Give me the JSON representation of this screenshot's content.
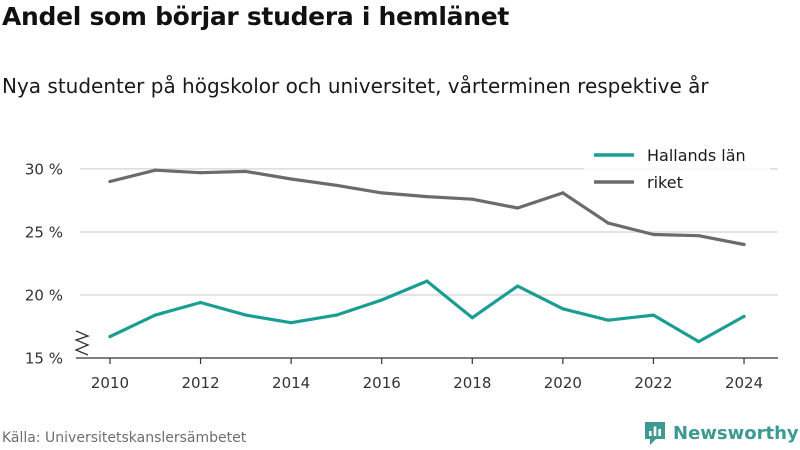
{
  "title": "Andel som börjar studera i hemlänet",
  "subtitle": "Nya studenter på högskolor och universitet, vårterminen respektive år",
  "source": "Källa: Universitetskanslersämbetet",
  "logo_text": "Newsworthy",
  "colors": {
    "series_1": "#1a9e93",
    "series_2": "#6b6a70",
    "logo": "#3d9a90",
    "grid": "#dcdcdc"
  },
  "chart_data": {
    "type": "line",
    "x": [
      2010,
      2011,
      2012,
      2013,
      2014,
      2015,
      2016,
      2017,
      2018,
      2019,
      2020,
      2021,
      2022,
      2023,
      2024
    ],
    "series": [
      {
        "name": "Hallands län",
        "color": "#1a9e93",
        "values": [
          16.7,
          18.4,
          19.4,
          18.4,
          17.8,
          18.4,
          19.6,
          21.1,
          18.2,
          20.7,
          18.9,
          18.0,
          18.4,
          16.3,
          18.3
        ]
      },
      {
        "name": "riket",
        "color": "#6b6a70",
        "values": [
          29.0,
          29.9,
          29.7,
          29.8,
          29.2,
          28.7,
          28.1,
          27.8,
          27.6,
          26.9,
          28.1,
          25.7,
          24.8,
          24.7,
          24.0
        ]
      }
    ],
    "yticks": [
      15,
      20,
      25,
      30
    ],
    "ytick_labels": [
      "15 %",
      "20 %",
      "25 %",
      "30 %"
    ],
    "xticks": [
      2010,
      2012,
      2014,
      2016,
      2018,
      2020,
      2022,
      2024
    ],
    "xtick_labels": [
      "2010",
      "2012",
      "2014",
      "2016",
      "2018",
      "2020",
      "2022",
      "2024"
    ],
    "ylim": [
      15,
      31.5
    ],
    "xlim": [
      2009.25,
      2024.75
    ],
    "legend_position": "top-right",
    "grid": true,
    "y_axis_break": true
  }
}
